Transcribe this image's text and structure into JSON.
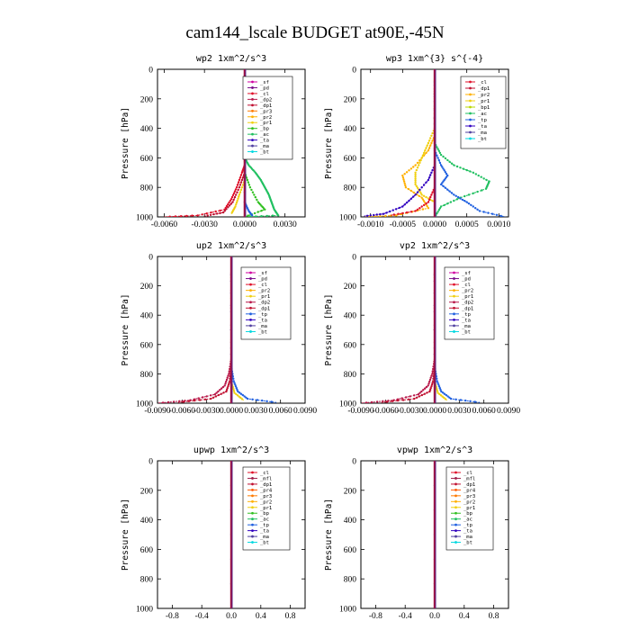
{
  "page": {
    "title": "cam144_lscale  BUDGET at90E,-45N"
  },
  "colors": {
    "sf": "#d000a0",
    "pd": "#7a0a8a",
    "cl": "#e0102a",
    "dp2": "#b8184a",
    "dp1": "#c01030",
    "pr3": "#ff7a00",
    "pr2": "#ffb000",
    "pr1": "#f0d010",
    "pr4": "#ff5a00",
    "mfl": "#a0204a",
    "bp1": "#b8d800",
    "bp": "#30c020",
    "ac": "#20c060",
    "tp": "#2060e0",
    "ta": "#3000c0",
    "ma": "#5040a0",
    "bt": "#00d8e0"
  },
  "chart_data": [
    {
      "type": "line",
      "title": "wp2  1xm^2/s^3",
      "ylabel": "Pressure [hPa]",
      "ylim": [
        1000,
        0
      ],
      "yticks": [
        "0",
        "200",
        "400",
        "600",
        "800",
        "1000"
      ],
      "xlim": [
        -0.0065,
        0.0045
      ],
      "xticks": [
        -0.006,
        -0.003,
        0.0,
        0.003
      ],
      "xtick_labels": [
        "-0.0060",
        "-0.0030",
        "0.0000",
        "0.0030"
      ],
      "legend": [
        "_sf",
        "_pd",
        "_cl",
        "_dp2",
        "_dp1",
        "_pr3",
        "_pr2",
        "_pr1",
        "_bp",
        "_ac",
        "_ta",
        "_ma",
        "_bt"
      ],
      "series": [
        {
          "name": "_ac",
          "key": "ac",
          "points": [
            [
              0.0,
              0
            ],
            [
              0.0,
              600
            ],
            [
              0.0003,
              650
            ],
            [
              0.0008,
              700
            ],
            [
              0.0012,
              750
            ],
            [
              0.0015,
              800
            ],
            [
              0.0018,
              850
            ],
            [
              0.002,
              900
            ],
            [
              0.0022,
              950
            ],
            [
              0.0025,
              990
            ],
            [
              0.0,
              1000
            ]
          ]
        },
        {
          "name": "_bp",
          "key": "bp",
          "points": [
            [
              0.0,
              0
            ],
            [
              0.0,
              700
            ],
            [
              0.0004,
              800
            ],
            [
              0.001,
              900
            ],
            [
              0.0015,
              950
            ],
            [
              0.0,
              1000
            ]
          ]
        },
        {
          "name": "_cl",
          "key": "cl",
          "points": [
            [
              0.0,
              0
            ],
            [
              0.0,
              650
            ],
            [
              -0.0002,
              700
            ],
            [
              -0.0006,
              800
            ],
            [
              -0.001,
              880
            ],
            [
              -0.0015,
              950
            ],
            [
              -0.0035,
              990
            ],
            [
              -0.006,
              1000
            ]
          ]
        },
        {
          "name": "_dp1",
          "key": "dp1",
          "points": [
            [
              0.0,
              0
            ],
            [
              0.0,
              700
            ],
            [
              -0.0004,
              800
            ],
            [
              -0.0009,
              900
            ],
            [
              -0.0016,
              970
            ],
            [
              -0.003,
              995
            ]
          ]
        },
        {
          "name": "_pr1",
          "key": "pr1",
          "points": [
            [
              0.0,
              0
            ],
            [
              0.0,
              750
            ],
            [
              -0.0004,
              850
            ],
            [
              -0.0007,
              930
            ],
            [
              -0.001,
              980
            ]
          ]
        },
        {
          "name": "_tp",
          "key": "tp",
          "points": [
            [
              0.0,
              0
            ],
            [
              0.0,
              900
            ],
            [
              0.0003,
              960
            ],
            [
              0.0006,
              995
            ]
          ]
        },
        {
          "name": "_pd",
          "key": "pd",
          "points": [
            [
              0.0,
              0
            ],
            [
              0.0,
              1000
            ]
          ]
        }
      ]
    },
    {
      "type": "line",
      "title": "wp3  1xm^{3} s^{-4}",
      "ylabel": "Pressure [hPa]",
      "ylim": [
        1000,
        0
      ],
      "yticks": [
        "0",
        "200",
        "400",
        "600",
        "800",
        "1000"
      ],
      "xlim": [
        -0.00115,
        0.00115
      ],
      "xticks": [
        -0.001,
        -0.0005,
        0.0,
        0.0005,
        0.001
      ],
      "xtick_labels": [
        "-0.0010",
        "-0.0005",
        "0.0000",
        "0.0005",
        "0.0010"
      ],
      "legend": [
        "_cl",
        "_dp1",
        "_pr2",
        "_pr1",
        "_bp1",
        "_ac",
        "_tp",
        "_ta",
        "_ma",
        "_bt"
      ],
      "series": [
        {
          "name": "_ac",
          "key": "ac",
          "points": [
            [
              0.0,
              0
            ],
            [
              0.0,
              500
            ],
            [
              0.0001,
              580
            ],
            [
              0.0003,
              650
            ],
            [
              0.0006,
              700
            ],
            [
              0.00085,
              760
            ],
            [
              0.0008,
              810
            ],
            [
              0.0004,
              870
            ],
            [
              0.0001,
              930
            ],
            [
              0.0,
              1000
            ]
          ]
        },
        {
          "name": "_pr2",
          "key": "pr2",
          "points": [
            [
              0.0,
              0
            ],
            [
              0.0,
              450
            ],
            [
              -0.0001,
              550
            ],
            [
              -0.0003,
              650
            ],
            [
              -0.0005,
              720
            ],
            [
              -0.00045,
              800
            ],
            [
              -0.0002,
              870
            ],
            [
              -0.0001,
              940
            ],
            [
              -0.0006,
              990
            ],
            [
              -0.0011,
              1000
            ]
          ]
        },
        {
          "name": "_pr1",
          "key": "pr1",
          "points": [
            [
              0.0,
              0
            ],
            [
              0.0,
              400
            ],
            [
              -0.0001,
              500
            ],
            [
              -0.0002,
              600
            ],
            [
              -0.0003,
              700
            ],
            [
              -0.0003,
              780
            ],
            [
              -0.0002,
              850
            ],
            [
              0.0,
              900
            ]
          ]
        },
        {
          "name": "_tp",
          "key": "tp",
          "points": [
            [
              0.0,
              0
            ],
            [
              0.0,
              550
            ],
            [
              0.0001,
              650
            ],
            [
              0.0002,
              720
            ],
            [
              0.0001,
              780
            ],
            [
              0.0003,
              850
            ],
            [
              0.0005,
              900
            ],
            [
              0.0007,
              960
            ],
            [
              0.0011,
              1000
            ]
          ]
        },
        {
          "name": "_ta",
          "key": "ta",
          "points": [
            [
              0.0,
              0
            ],
            [
              0.0,
              650
            ],
            [
              -0.0001,
              750
            ],
            [
              -0.0003,
              850
            ],
            [
              -0.0005,
              930
            ],
            [
              -0.0008,
              980
            ],
            [
              -0.0011,
              995
            ]
          ]
        },
        {
          "name": "_cl",
          "key": "cl",
          "points": [
            [
              0.0,
              0
            ],
            [
              0.0,
              800
            ],
            [
              -0.0001,
              900
            ],
            [
              -0.0003,
              960
            ],
            [
              -0.0007,
              990
            ]
          ]
        },
        {
          "name": "_dp1",
          "key": "dp1",
          "points": [
            [
              0.0,
              0
            ],
            [
              0.0,
              1000
            ]
          ]
        }
      ]
    },
    {
      "type": "line",
      "title": "up2  1xm^2/s^3",
      "ylabel": "Pressure [hPa]",
      "ylim": [
        1000,
        0
      ],
      "yticks": [
        "0",
        "200",
        "400",
        "600",
        "800",
        "1000"
      ],
      "xlim": [
        -0.009,
        0.009
      ],
      "xticks": [
        -0.009,
        -0.006,
        -0.003,
        0.0,
        0.003,
        0.006,
        0.009
      ],
      "xtick_labels": [
        "-0.0090",
        "-0.0060",
        "-0.0030",
        "0.0000",
        "0.0030",
        "0.0060",
        "0.0090"
      ],
      "legend": [
        "_sf",
        "_pd",
        "_cl",
        "_pr2",
        "_pr1",
        "_dp2",
        "_dp1",
        "_tp",
        "_ta",
        "_ma",
        "_bt"
      ],
      "series": [
        {
          "name": "_dp2",
          "key": "dp2",
          "points": [
            [
              0.0,
              0
            ],
            [
              0.0,
              700
            ],
            [
              -0.0003,
              800
            ],
            [
              -0.0008,
              880
            ],
            [
              -0.002,
              940
            ],
            [
              -0.005,
              980
            ],
            [
              -0.009,
              1000
            ]
          ]
        },
        {
          "name": "_dp1",
          "key": "dp1",
          "points": [
            [
              0.0,
              0
            ],
            [
              0.0,
              750
            ],
            [
              -0.0002,
              850
            ],
            [
              -0.0006,
              920
            ],
            [
              -0.0025,
              970
            ],
            [
              -0.0065,
              995
            ]
          ]
        },
        {
          "name": "_tp",
          "key": "tp",
          "points": [
            [
              0.0,
              0
            ],
            [
              0.0,
              750
            ],
            [
              0.0003,
              850
            ],
            [
              0.0008,
              920
            ],
            [
              0.002,
              970
            ],
            [
              0.0055,
              995
            ]
          ]
        },
        {
          "name": "_pr1",
          "key": "pr1",
          "points": [
            [
              0.0,
              0
            ],
            [
              0.0,
              850
            ],
            [
              0.0004,
              930
            ],
            [
              0.0015,
              980
            ]
          ]
        },
        {
          "name": "_ma",
          "key": "ma",
          "points": [
            [
              0.0,
              0
            ],
            [
              0.0,
              1000
            ]
          ]
        },
        {
          "name": "_pd",
          "key": "pd",
          "points": [
            [
              0.0,
              0
            ],
            [
              0.0,
              1000
            ]
          ]
        }
      ]
    },
    {
      "type": "line",
      "title": "vp2  1xm^2/s^3",
      "ylabel": "Pressure [hPa]",
      "ylim": [
        1000,
        0
      ],
      "yticks": [
        "0",
        "200",
        "400",
        "600",
        "800",
        "1000"
      ],
      "xlim": [
        -0.009,
        0.009
      ],
      "xticks": [
        -0.009,
        -0.006,
        -0.003,
        0.0,
        0.003,
        0.006,
        0.009
      ],
      "xtick_labels": [
        "-0.0090",
        "-0.0060",
        "-0.0030",
        "0.0000",
        "0.0030",
        "0.0060",
        "0.0090"
      ],
      "legend": [
        "_sf",
        "_pd",
        "_cl",
        "_pr2",
        "_pr1",
        "_dp2",
        "_dp1",
        "_tp",
        "_ta",
        "_ma",
        "_bt"
      ],
      "series": [
        {
          "name": "_dp2",
          "key": "dp2",
          "points": [
            [
              0.0,
              0
            ],
            [
              0.0,
              700
            ],
            [
              -0.0003,
              800
            ],
            [
              -0.0008,
              880
            ],
            [
              -0.002,
              940
            ],
            [
              -0.005,
              980
            ],
            [
              -0.009,
              1000
            ]
          ]
        },
        {
          "name": "_dp1",
          "key": "dp1",
          "points": [
            [
              0.0,
              0
            ],
            [
              0.0,
              750
            ],
            [
              -0.0002,
              850
            ],
            [
              -0.0006,
              920
            ],
            [
              -0.0025,
              970
            ],
            [
              -0.0065,
              995
            ]
          ]
        },
        {
          "name": "_tp",
          "key": "tp",
          "points": [
            [
              0.0,
              0
            ],
            [
              0.0,
              750
            ],
            [
              0.0003,
              850
            ],
            [
              0.0008,
              920
            ],
            [
              0.002,
              970
            ],
            [
              0.0055,
              995
            ]
          ]
        },
        {
          "name": "_pr1",
          "key": "pr1",
          "points": [
            [
              0.0,
              0
            ],
            [
              0.0,
              850
            ],
            [
              0.0004,
              930
            ],
            [
              0.0015,
              980
            ]
          ]
        },
        {
          "name": "_ma",
          "key": "ma",
          "points": [
            [
              0.0,
              0
            ],
            [
              0.0,
              1000
            ]
          ]
        },
        {
          "name": "_pd",
          "key": "pd",
          "points": [
            [
              0.0,
              0
            ],
            [
              0.0,
              1000
            ]
          ]
        }
      ]
    },
    {
      "type": "line",
      "title": "upwp  1xm^2/s^3",
      "ylabel": "Pressure [hPa]",
      "ylim": [
        1000,
        0
      ],
      "yticks": [
        "0",
        "200",
        "400",
        "600",
        "800",
        "1000"
      ],
      "xlim": [
        -1.0,
        1.0
      ],
      "xticks": [
        -0.8,
        -0.4,
        0.0,
        0.4,
        0.8
      ],
      "xtick_labels": [
        "-0.8",
        "-0.4",
        "0.0",
        "0.4",
        "0.8"
      ],
      "legend": [
        "_cl",
        "_mfl",
        "_dp1",
        "_pr4",
        "_pr3",
        "_pr2",
        "_pr1",
        "_bp",
        "_ac",
        "_tp",
        "_ta",
        "_ma",
        "_bt"
      ],
      "series": [
        {
          "name": "_ma",
          "key": "ma",
          "points": [
            [
              0.0,
              0
            ],
            [
              0.0,
              1000
            ]
          ]
        }
      ]
    },
    {
      "type": "line",
      "title": "vpwp  1xm^2/s^3",
      "ylabel": "Pressure [hPa]",
      "ylim": [
        1000,
        0
      ],
      "yticks": [
        "0",
        "200",
        "400",
        "600",
        "800",
        "1000"
      ],
      "xlim": [
        -1.0,
        1.0
      ],
      "xticks": [
        -0.8,
        -0.4,
        0.0,
        0.4,
        0.8
      ],
      "xtick_labels": [
        "-0.8",
        "-0.4",
        "0.0",
        "0.4",
        "0.8"
      ],
      "legend": [
        "_cl",
        "_mfl",
        "_dp1",
        "_pr4",
        "_pr3",
        "_pr2",
        "_pr1",
        "_bp",
        "_ac",
        "_tp",
        "_ta",
        "_ma",
        "_bt"
      ],
      "series": [
        {
          "name": "_ma",
          "key": "ma",
          "points": [
            [
              0.0,
              0
            ],
            [
              0.0,
              1000
            ]
          ]
        }
      ]
    }
  ]
}
